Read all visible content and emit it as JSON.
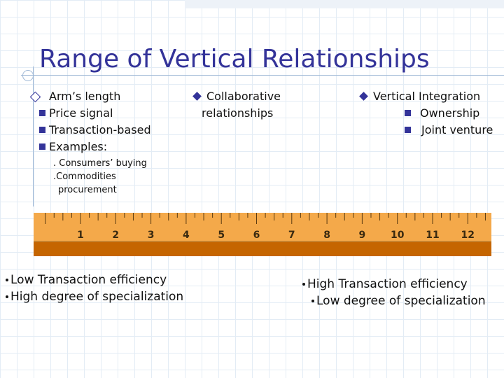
{
  "title": "Range of Vertical Relationships",
  "left": {
    "heading": "Arm’s length",
    "items": [
      "Price signal",
      "Transaction-based",
      "Examples:"
    ],
    "examples": [
      ". Consumers’ buying",
      ".Commodities",
      "procurement"
    ]
  },
  "middle": {
    "heading": "Collaborative",
    "continuation": "relationships"
  },
  "right": {
    "heading": "Vertical Integration",
    "items": [
      "Ownership",
      "Joint venture"
    ]
  },
  "ruler": {
    "numbers": [
      "1",
      "2",
      "3",
      "4",
      "5",
      "6",
      "7",
      "8",
      "9",
      "10",
      "11",
      "12"
    ]
  },
  "bottom_left": [
    "Low Transaction efficiency",
    "High degree of specialization"
  ],
  "bottom_right": [
    "High Transaction efficiency",
    "Low degree of specialization"
  ]
}
